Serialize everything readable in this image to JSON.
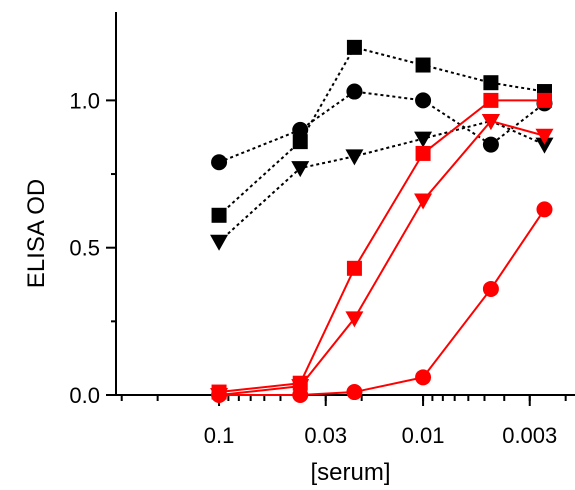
{
  "chart_data": {
    "type": "line",
    "xlabel": "[serum]",
    "ylabel": "ELISA OD",
    "x_scale": "log-reversed",
    "xlim": [
      0.32,
      0.0018
    ],
    "ylim": [
      0.0,
      1.3
    ],
    "grid": false,
    "legend": "none",
    "x_ticks": [
      {
        "value": 0.1,
        "label": "0.1"
      },
      {
        "value": 0.03,
        "label": "0.03"
      },
      {
        "value": 0.01,
        "label": "0.01"
      },
      {
        "value": 0.003,
        "label": "0.003"
      }
    ],
    "y_ticks": [
      {
        "value": 0.0,
        "label": "0.0"
      },
      {
        "value": 0.5,
        "label": "0.5"
      },
      {
        "value": 1.0,
        "label": "1.0"
      }
    ],
    "x": [
      0.1,
      0.04,
      0.0217,
      0.01,
      0.00465,
      0.00254
    ],
    "series": [
      {
        "marker": "square",
        "color": "#000000",
        "line_style": "dotted",
        "values": [
          0.61,
          0.86,
          1.18,
          1.12,
          1.06,
          1.03
        ]
      },
      {
        "marker": "circle",
        "color": "#000000",
        "line_style": "dotted",
        "values": [
          0.79,
          0.9,
          1.03,
          1.0,
          0.85,
          0.99
        ]
      },
      {
        "marker": "triangle-down",
        "color": "#000000",
        "line_style": "dotted",
        "values": [
          0.52,
          0.77,
          0.81,
          0.87,
          0.93,
          0.85
        ]
      },
      {
        "marker": "square",
        "color": "#ff0000",
        "line_style": "solid",
        "values": [
          0.01,
          0.04,
          0.43,
          0.82,
          1.0,
          1.0
        ]
      },
      {
        "marker": "triangle-down",
        "color": "#ff0000",
        "line_style": "solid",
        "values": [
          0.0,
          0.03,
          0.26,
          0.66,
          0.93,
          0.88
        ]
      },
      {
        "marker": "circle",
        "color": "#ff0000",
        "line_style": "solid",
        "values": [
          0.0,
          0.0,
          0.01,
          0.06,
          0.36,
          0.63
        ]
      }
    ]
  }
}
